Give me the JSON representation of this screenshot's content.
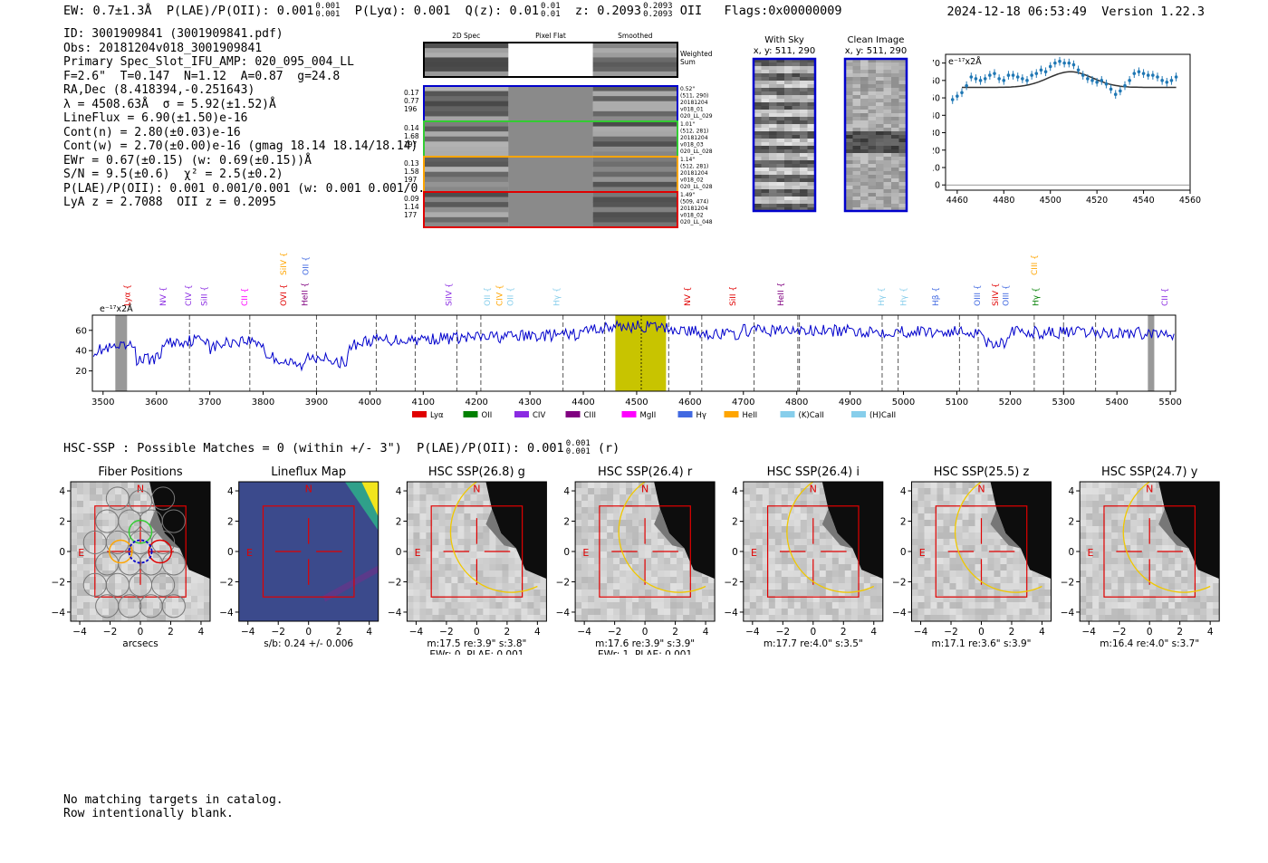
{
  "header": {
    "summary": "EW: 0.7±1.3Å  P(LAE)/P(OII): 0.001 0.001/0.001  P(Lyα): 0.001  Q(z): 0.01 0.01/0.01  z: 0.2093 0.2093/0.2093 OII  Flags:0x00000009",
    "datetime": "2024-12-18 06:53:49",
    "version": "Version 1.22.3"
  },
  "header_parts": {
    "ew": "EW: 0.7±1.3Å",
    "plae_label": "P(LAE)/P(OII): 0.001",
    "plae_hi": "0.001",
    "plae_lo": "0.001",
    "plya": "P(Lyα): 0.001",
    "qz_label": "Q(z): 0.01",
    "qz_hi": "0.01",
    "qz_lo": "0.01",
    "z_label": "z: 0.2093",
    "z_hi": "0.2093",
    "z_lo": "0.2093",
    "z_type": "OII",
    "flags": "Flags:0x00000009"
  },
  "info": {
    "lines": [
      "ID: 3001909841 (3001909841.pdf)",
      "Obs: 20181204v018_3001909841",
      "Primary Spec_Slot_IFU_AMP: 020_095_004_LL",
      "F=2.6\"  T=0.147  N=1.12  A=0.87  g=24.8",
      "RA,Dec (8.418394,-0.251643)",
      "λ = 4508.63Å  σ = 5.92(±1.52)Å",
      "LineFlux = 6.90(±1.50)e-16",
      "Cont(n) = 2.80(±0.03)e-16",
      "Cont(w) = 2.70(±0.00)e-16 (gmag 18.14 18.14/18.14)",
      "EWr = 0.67(±0.15) (w: 0.69(±0.15))Å",
      "S/N = 9.5(±0.6)  χ² = 2.5(±0.2)",
      "P(LAE)/P(OII): 0.001 0.001/0.001 (w: 0.001 0.001/0.001)",
      "LyA z = 2.7088  OII z = 0.2095"
    ]
  },
  "spec2d": {
    "col_titles": [
      "2D Spec",
      "Pixel Flat",
      "Smoothed"
    ],
    "weighted_label_1": "Weighted",
    "weighted_label_2": "Sum",
    "fibers": [
      {
        "left": [
          "0.17",
          "0.77",
          "196"
        ],
        "right": [
          "0.52\"",
          "(511, 290)",
          "20181204",
          "v018_01",
          "020_LL_029"
        ],
        "color": "#0000cc"
      },
      {
        "left": [
          "0.14",
          "1.68",
          "197"
        ],
        "right": [
          "1.01\"",
          "(512, 281)",
          "20181204",
          "v018_03",
          "020_LL_028"
        ],
        "color": "#33cc33"
      },
      {
        "left": [
          "0.13",
          "1.58",
          "197"
        ],
        "right": [
          "1.14\"",
          "(512, 281)",
          "20181204",
          "v018_02",
          "020_LL_028"
        ],
        "color": "#ffa500"
      },
      {
        "left": [
          "0.09",
          "1.14",
          "177"
        ],
        "right": [
          "1.49\"",
          "(509, 474)",
          "20181204",
          "v018_02",
          "020_LL_048"
        ],
        "color": "#e00000"
      }
    ]
  },
  "sky_images": {
    "with_sky_title": "With Sky",
    "with_sky_sub": "x, y: 511, 290",
    "clean_title": "Clean Image",
    "clean_sub": "x, y: 511, 290"
  },
  "zoom_chart_data": {
    "type": "scatter",
    "ylabel": "e⁻¹⁷x2Å",
    "xlim": [
      4455,
      4560
    ],
    "ylim": [
      -3,
      75
    ],
    "xticks": [
      4460,
      4480,
      4500,
      4520,
      4540,
      4560
    ],
    "yticks": [
      0,
      10,
      20,
      30,
      40,
      50,
      60,
      70
    ],
    "x": [
      4458,
      4460,
      4462,
      4464,
      4466,
      4468,
      4470,
      4472,
      4474,
      4476,
      4478,
      4480,
      4482,
      4484,
      4486,
      4488,
      4490,
      4492,
      4494,
      4496,
      4498,
      4500,
      4502,
      4504,
      4506,
      4508,
      4510,
      4512,
      4514,
      4516,
      4518,
      4520,
      4522,
      4524,
      4526,
      4528,
      4530,
      4532,
      4534,
      4536,
      4538,
      4540,
      4542,
      4544,
      4546,
      4548,
      4550,
      4552,
      4554
    ],
    "y": [
      49,
      51,
      53,
      57,
      62,
      61,
      60,
      61,
      63,
      64,
      61,
      60,
      63,
      63,
      62,
      61,
      60,
      63,
      64,
      66,
      65,
      68,
      70,
      71,
      70,
      70,
      69,
      66,
      63,
      61,
      60,
      59,
      60,
      58,
      55,
      52,
      54,
      57,
      60,
      64,
      65,
      64,
      63,
      63,
      62,
      60,
      59,
      60,
      62
    ],
    "fit_baseline": 56,
    "fit_peak": 65,
    "fit_center": 4508.63,
    "fit_sigma": 5.92
  },
  "spectrum_chart_data": {
    "type": "line",
    "ylabel": "e⁻¹⁷x2Å",
    "xlim": [
      3480,
      5510
    ],
    "ylim": [
      0,
      75
    ],
    "xticks": [
      3500,
      3600,
      3700,
      3800,
      3900,
      4000,
      4100,
      4200,
      4300,
      4400,
      4500,
      4600,
      4700,
      4800,
      4900,
      5000,
      5100,
      5200,
      5300,
      5400,
      5500
    ],
    "yticks": [
      20,
      40,
      60
    ],
    "highlight_band": [
      4460,
      4555
    ],
    "highlight_line": 4508.6,
    "gray_bands": [
      [
        3523,
        3545
      ],
      [
        5458,
        5470
      ]
    ],
    "dashed_lines": [
      3662,
      3775,
      3900,
      4012,
      4085,
      4163,
      4208,
      4362,
      4440,
      4560,
      4622,
      4720,
      4802,
      4805,
      4960,
      4990,
      5105,
      5140,
      5245,
      5300,
      5360
    ],
    "legend": [
      {
        "name": "Lyα",
        "color": "#e00000"
      },
      {
        "name": "OII",
        "color": "#008000"
      },
      {
        "name": "CIV",
        "color": "#8a2be2"
      },
      {
        "name": "CIII",
        "color": "#800080"
      },
      {
        "name": "MgII",
        "color": "#ff00ff"
      },
      {
        "name": "Hγ",
        "color": "#4169e1"
      },
      {
        "name": "HeII",
        "color": "#ffa500"
      },
      {
        "name": "(K)CaII",
        "color": "#87ceeb"
      },
      {
        "name": "(H)CaII",
        "color": "#87ceeb"
      }
    ],
    "line_labels": [
      {
        "name": "Lyα",
        "x": 3545,
        "color": "#e00000",
        "row": 0
      },
      {
        "name": "NV",
        "x": 3612,
        "color": "#8a2be2",
        "row": 0
      },
      {
        "name": "CIV",
        "x": 3660,
        "color": "#8a2be2",
        "row": 0
      },
      {
        "name": "SiII",
        "x": 3690,
        "color": "#8a2be2",
        "row": 0
      },
      {
        "name": "CII",
        "x": 3765,
        "color": "#ff00ff",
        "row": 0
      },
      {
        "name": "OVI",
        "x": 3838,
        "color": "#e00000",
        "row": 0
      },
      {
        "name": "HeII",
        "x": 3878,
        "color": "#800080",
        "row": 0
      },
      {
        "name": "SiIV",
        "x": 3838,
        "color": "#ffa500",
        "row": 1
      },
      {
        "name": "OII",
        "x": 3880,
        "color": "#4169e1",
        "row": 1
      },
      {
        "name": "SiIV",
        "x": 4148,
        "color": "#8a2be2",
        "row": 0
      },
      {
        "name": "OII",
        "x": 4220,
        "color": "#87ceeb",
        "row": 0
      },
      {
        "name": "CIV",
        "x": 4243,
        "color": "#ffa500",
        "row": 0
      },
      {
        "name": "OII",
        "x": 4263,
        "color": "#87ceeb",
        "row": 0
      },
      {
        "name": "Hγ",
        "x": 4350,
        "color": "#87ceeb",
        "row": 0
      },
      {
        "name": "NV",
        "x": 4595,
        "color": "#e00000",
        "row": 0
      },
      {
        "name": "SiII",
        "x": 4680,
        "color": "#e00000",
        "row": 0
      },
      {
        "name": "HeII",
        "x": 4770,
        "color": "#800080",
        "row": 0
      },
      {
        "name": "Hγ",
        "x": 4958,
        "color": "#87ceeb",
        "row": 0
      },
      {
        "name": "Hγ",
        "x": 5000,
        "color": "#87ceeb",
        "row": 0
      },
      {
        "name": "Hβ",
        "x": 5060,
        "color": "#4169e1",
        "row": 0
      },
      {
        "name": "OIII",
        "x": 5138,
        "color": "#4169e1",
        "row": 0
      },
      {
        "name": "SiIV",
        "x": 5172,
        "color": "#e00000",
        "row": 0
      },
      {
        "name": "OIII",
        "x": 5192,
        "color": "#4169e1",
        "row": 0
      },
      {
        "name": "Hγ",
        "x": 5248,
        "color": "#008000",
        "row": 0
      },
      {
        "name": "CIII",
        "x": 5245,
        "color": "#ffa500",
        "row": 1
      },
      {
        "name": "CII",
        "x": 5490,
        "color": "#8a2be2",
        "row": 0
      }
    ]
  },
  "hsc": {
    "summary_prefix": "HSC-SSP : Possible Matches = 0 (within +/- 3\")  P(LAE)/P(OII): 0.001",
    "summary_hi": "0.001",
    "summary_lo": "0.001",
    "summary_suffix": "(r)",
    "north": "N",
    "east": "E",
    "ticks": [
      "−4",
      "−2",
      "0",
      "2",
      "4"
    ],
    "panels": [
      {
        "title": "Fiber Positions",
        "xlabel": "arcsecs",
        "xlabel2": ""
      },
      {
        "title": "Lineflux Map",
        "xlabel": "s/b: 0.24 +/- 0.006",
        "xlabel2": ""
      },
      {
        "title": "HSC SSP(26.8) g",
        "xlabel": "m:17.5  re:3.9\"  s:3.8\"",
        "xlabel2": "EWr: 0, PLAE: 0.001"
      },
      {
        "title": "HSC SSP(26.4) r",
        "xlabel": "m:17.6  re:3.9\"  s:3.9\"",
        "xlabel2": "EWr: 1, PLAE: 0.001"
      },
      {
        "title": "HSC SSP(26.4) i",
        "xlabel": "m:17.7  re:4.0\"  s:3.5\"",
        "xlabel2": ""
      },
      {
        "title": "HSC SSP(25.5) z",
        "xlabel": "m:17.1  re:3.6\"  s:3.9\"",
        "xlabel2": ""
      },
      {
        "title": "HSC SSP(24.7) y",
        "xlabel": "m:16.4  re:4.0\"  s:3.7\"",
        "xlabel2": ""
      }
    ]
  },
  "footer": {
    "line1": "No matching targets in catalog.",
    "line2": "Row intentionally blank."
  },
  "colors": {
    "spectrum": "#0000cc",
    "highlight": "#c8c400",
    "marker": "#1f77b4",
    "box": "#e00000",
    "ellipse": "#f0c800"
  }
}
